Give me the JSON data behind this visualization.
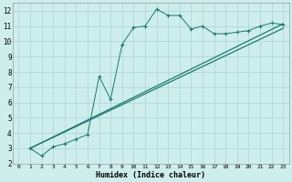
{
  "xlabel": "Humidex (Indice chaleur)",
  "bg_color": "#ceeeed",
  "grid_color": "#aed8d6",
  "line_color": "#1a7a6e",
  "xlim": [
    -0.5,
    23.5
  ],
  "ylim": [
    2,
    12.5
  ],
  "xticks": [
    0,
    1,
    2,
    3,
    4,
    5,
    6,
    7,
    8,
    9,
    10,
    11,
    12,
    13,
    14,
    15,
    16,
    17,
    18,
    19,
    20,
    21,
    22,
    23
  ],
  "yticks": [
    2,
    3,
    4,
    5,
    6,
    7,
    8,
    9,
    10,
    11,
    12
  ],
  "series1_x": [
    1,
    2,
    3,
    4,
    5,
    6,
    7,
    8,
    9,
    10,
    11,
    12,
    13,
    14,
    15,
    16,
    17,
    18,
    19,
    20,
    21,
    22,
    23
  ],
  "series1_y": [
    3.0,
    2.5,
    3.1,
    3.3,
    3.6,
    3.9,
    7.7,
    6.2,
    9.8,
    10.9,
    11.0,
    12.1,
    11.7,
    11.7,
    10.8,
    11.0,
    10.5,
    10.5,
    10.6,
    10.7,
    11.0,
    11.2,
    11.1
  ],
  "series2_x": [
    1,
    23
  ],
  "series2_y": [
    3.0,
    11.15
  ],
  "series3_x": [
    1,
    23
  ],
  "series3_y": [
    3.0,
    10.85
  ]
}
